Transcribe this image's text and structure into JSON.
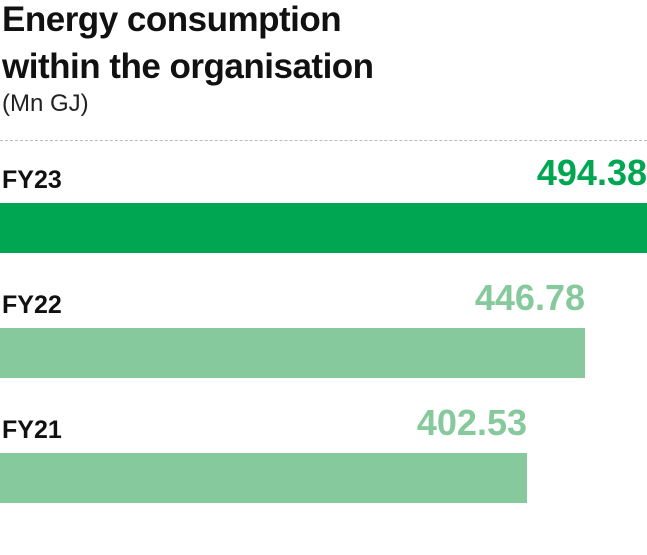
{
  "chart_data": {
    "type": "bar",
    "orientation": "horizontal",
    "title": "Energy consumption within the organisation",
    "subtitle": "(Mn GJ)",
    "categories": [
      "FY23",
      "FY22",
      "FY21"
    ],
    "values": [
      494.38,
      446.78,
      402.53
    ],
    "value_labels": [
      "494.38",
      "446.78",
      "402.53"
    ],
    "colors": [
      "#00a651",
      "#86c99c",
      "#86c99c"
    ],
    "xlim": [
      0,
      494.38
    ],
    "grid": false
  }
}
